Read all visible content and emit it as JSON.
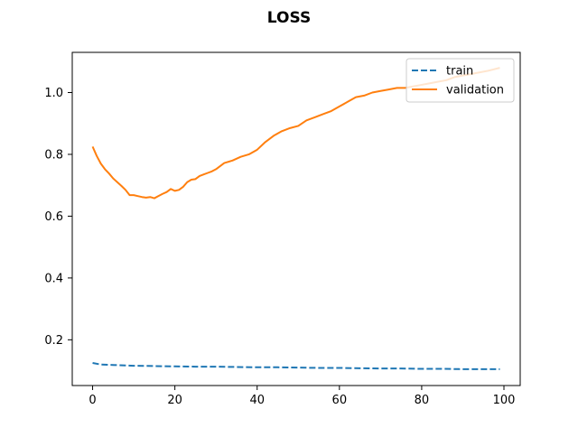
{
  "chart_data": {
    "type": "line",
    "title": "LOSS",
    "xlabel": "",
    "ylabel": "",
    "xlim": [
      -4.95,
      103.95
    ],
    "ylim": [
      0.052,
      1.13
    ],
    "xticks": [
      0,
      20,
      40,
      60,
      80,
      100
    ],
    "yticks": [
      0.2,
      0.4,
      0.6,
      0.8,
      1.0
    ],
    "ytick_labels": [
      "0.2",
      "0.4",
      "0.6",
      "0.8",
      "1.0"
    ],
    "grid": false,
    "legend_position": "top-right",
    "series": [
      {
        "name": "train",
        "color": "#1f77b4",
        "style": "dashed",
        "x": [
          0,
          2,
          4,
          6,
          8,
          10,
          15,
          20,
          25,
          30,
          35,
          40,
          45,
          50,
          55,
          60,
          65,
          70,
          75,
          80,
          85,
          90,
          95,
          99
        ],
        "y": [
          0.125,
          0.12,
          0.119,
          0.118,
          0.117,
          0.116,
          0.115,
          0.114,
          0.113,
          0.113,
          0.112,
          0.111,
          0.111,
          0.11,
          0.109,
          0.109,
          0.108,
          0.107,
          0.107,
          0.106,
          0.106,
          0.105,
          0.105,
          0.105
        ]
      },
      {
        "name": "validation",
        "color": "#ff7f0e",
        "style": "solid",
        "x": [
          0,
          1,
          2,
          3,
          4,
          5,
          6,
          7,
          8,
          9,
          10,
          11,
          12,
          13,
          14,
          15,
          16,
          17,
          18,
          19,
          20,
          21,
          22,
          23,
          24,
          25,
          26,
          27,
          28,
          29,
          30,
          32,
          34,
          36,
          38,
          40,
          42,
          44,
          46,
          48,
          50,
          52,
          54,
          56,
          58,
          60,
          62,
          64,
          66,
          68,
          70,
          72,
          74,
          76,
          78,
          80,
          82,
          84,
          86,
          88,
          90,
          92,
          94,
          96,
          99
        ],
        "y": [
          0.825,
          0.795,
          0.77,
          0.752,
          0.738,
          0.722,
          0.71,
          0.698,
          0.685,
          0.668,
          0.668,
          0.665,
          0.662,
          0.66,
          0.662,
          0.658,
          0.665,
          0.672,
          0.678,
          0.688,
          0.682,
          0.685,
          0.695,
          0.71,
          0.718,
          0.72,
          0.73,
          0.735,
          0.74,
          0.745,
          0.752,
          0.772,
          0.78,
          0.792,
          0.8,
          0.815,
          0.84,
          0.86,
          0.875,
          0.885,
          0.892,
          0.91,
          0.92,
          0.93,
          0.94,
          0.955,
          0.97,
          0.985,
          0.99,
          1.0,
          1.005,
          1.01,
          1.015,
          1.015,
          1.02,
          1.025,
          1.03,
          1.035,
          1.04,
          1.05,
          1.055,
          1.06,
          1.065,
          1.07,
          1.08
        ]
      }
    ]
  }
}
